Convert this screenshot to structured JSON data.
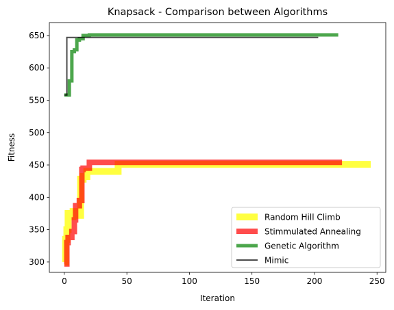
{
  "chart_data": {
    "type": "line",
    "title": "Knapsack - Comparison between Algorithms",
    "xlabel": "Iteration",
    "ylabel": "Fitness",
    "xlim": [
      -12,
      257
    ],
    "ylim": [
      284,
      670
    ],
    "xticks": [
      0,
      50,
      100,
      150,
      200,
      250
    ],
    "yticks": [
      300,
      350,
      400,
      450,
      500,
      550,
      600,
      650
    ],
    "grid": false,
    "legend_position": "lower-right",
    "series": [
      {
        "name": "Random Hill Climb",
        "color": "#ffff00",
        "alpha": 0.75,
        "x": [
          0,
          1,
          1,
          2,
          2,
          3,
          3,
          5,
          5,
          7,
          7,
          9,
          9,
          11,
          11,
          13,
          13,
          15,
          15,
          18,
          18,
          43,
          43,
          245
        ],
        "y": [
          300,
          300,
          335,
          335,
          350,
          350,
          375,
          375,
          370,
          370,
          378,
          378,
          375,
          375,
          372,
          372,
          428,
          428,
          432,
          432,
          440,
          440,
          451,
          451
        ]
      },
      {
        "name": "Stimmulated Annealing",
        "color": "#ff0000",
        "alpha": 0.7,
        "x": [
          0,
          2,
          2,
          3,
          3,
          6,
          6,
          8,
          8,
          9,
          9,
          12,
          12,
          14,
          14,
          15,
          15,
          20,
          20,
          222
        ],
        "y": [
          297,
          297,
          330,
          330,
          338,
          338,
          347,
          347,
          365,
          365,
          387,
          387,
          395,
          395,
          443,
          443,
          445,
          445,
          454,
          454
        ]
      },
      {
        "name": "Genetic Algorithm",
        "color": "#008000",
        "alpha": 0.7,
        "x": [
          0,
          4,
          4,
          6,
          6,
          8,
          8,
          10,
          10,
          12,
          12,
          15,
          15,
          20,
          20,
          219
        ],
        "y": [
          558,
          558,
          580,
          580,
          625,
          625,
          628,
          628,
          643,
          643,
          645,
          645,
          650,
          650,
          651,
          651
        ]
      },
      {
        "name": "Mimic",
        "color": "#000000",
        "alpha": 0.7,
        "x": [
          0,
          2,
          2,
          203
        ],
        "y": [
          558,
          558,
          647,
          647
        ]
      }
    ]
  }
}
